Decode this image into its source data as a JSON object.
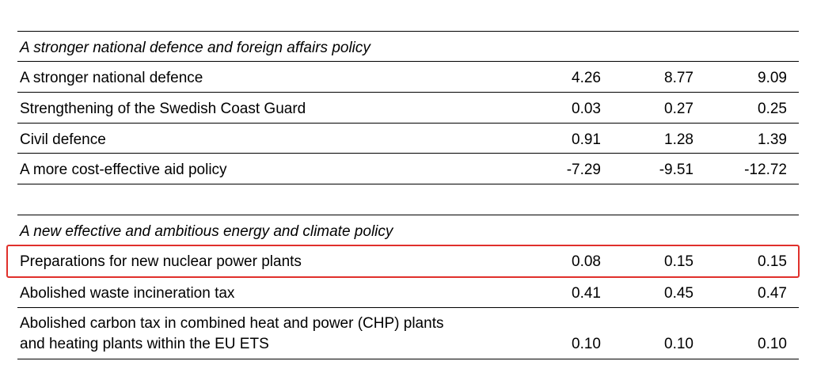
{
  "sections": [
    {
      "title": "A stronger national defence and foreign affairs policy",
      "rows": [
        {
          "label": "A stronger national defence",
          "values": [
            "4.26",
            "8.77",
            "9.09"
          ]
        },
        {
          "label": "Strengthening of the Swedish Coast Guard",
          "values": [
            "0.03",
            "0.27",
            "0.25"
          ]
        },
        {
          "label": "Civil defence",
          "values": [
            "0.91",
            "1.28",
            "1.39"
          ]
        },
        {
          "label": "A more cost-effective aid policy",
          "values": [
            "-7.29",
            "-9.51",
            "-12.72"
          ]
        }
      ]
    },
    {
      "title": "A new effective and ambitious energy and climate policy",
      "rows": [
        {
          "label": "Preparations for new nuclear power plants",
          "values": [
            "0.08",
            "0.15",
            "0.15"
          ]
        },
        {
          "label": "Abolished waste incineration tax",
          "values": [
            "0.41",
            "0.45",
            "0.47"
          ]
        },
        {
          "label_line1": "Abolished carbon tax in combined heat and power (CHP) plants",
          "label_line2": "and heating plants within the EU ETS",
          "values": [
            "0.10",
            "0.10",
            "0.10"
          ]
        }
      ]
    }
  ],
  "highlight_color": "#e0302b"
}
